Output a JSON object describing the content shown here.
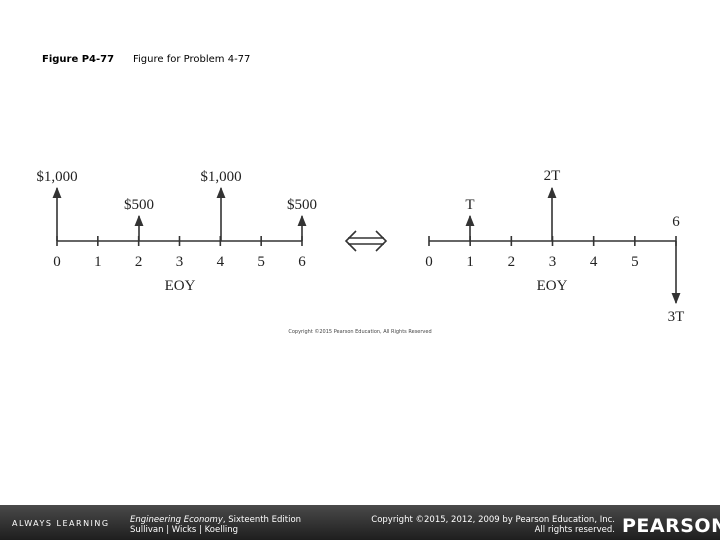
{
  "header": {
    "figure_label": "Figure P4-77",
    "caption": "Figure for Problem 4-77"
  },
  "left_diagram": {
    "amounts": [
      "$1,000",
      "$500",
      "$1,000",
      "$500"
    ],
    "period_labels": [
      "0",
      "1",
      "2",
      "3",
      "4",
      "5",
      "6"
    ],
    "axis_label": "EOY"
  },
  "right_diagram": {
    "amounts": [
      "T",
      "2T",
      "3T"
    ],
    "period_labels": [
      "0",
      "1",
      "2",
      "3",
      "4",
      "5",
      "6"
    ],
    "axis_label": "EOY"
  },
  "figure_copyright": "Copyright ©2015 Pearson Education, All Rights Reserved",
  "footer": {
    "brand": "ALWAYS LEARNING",
    "book_title": "Engineering Economy",
    "edition": ", Sixteenth Edition",
    "authors": "Sullivan | Wicks | Koelling",
    "copyright_line1": "Copyright ©2015, 2012, 2009 by Pearson Education, Inc.",
    "copyright_line2": "All rights reserved.",
    "publisher": "PEARSON"
  }
}
